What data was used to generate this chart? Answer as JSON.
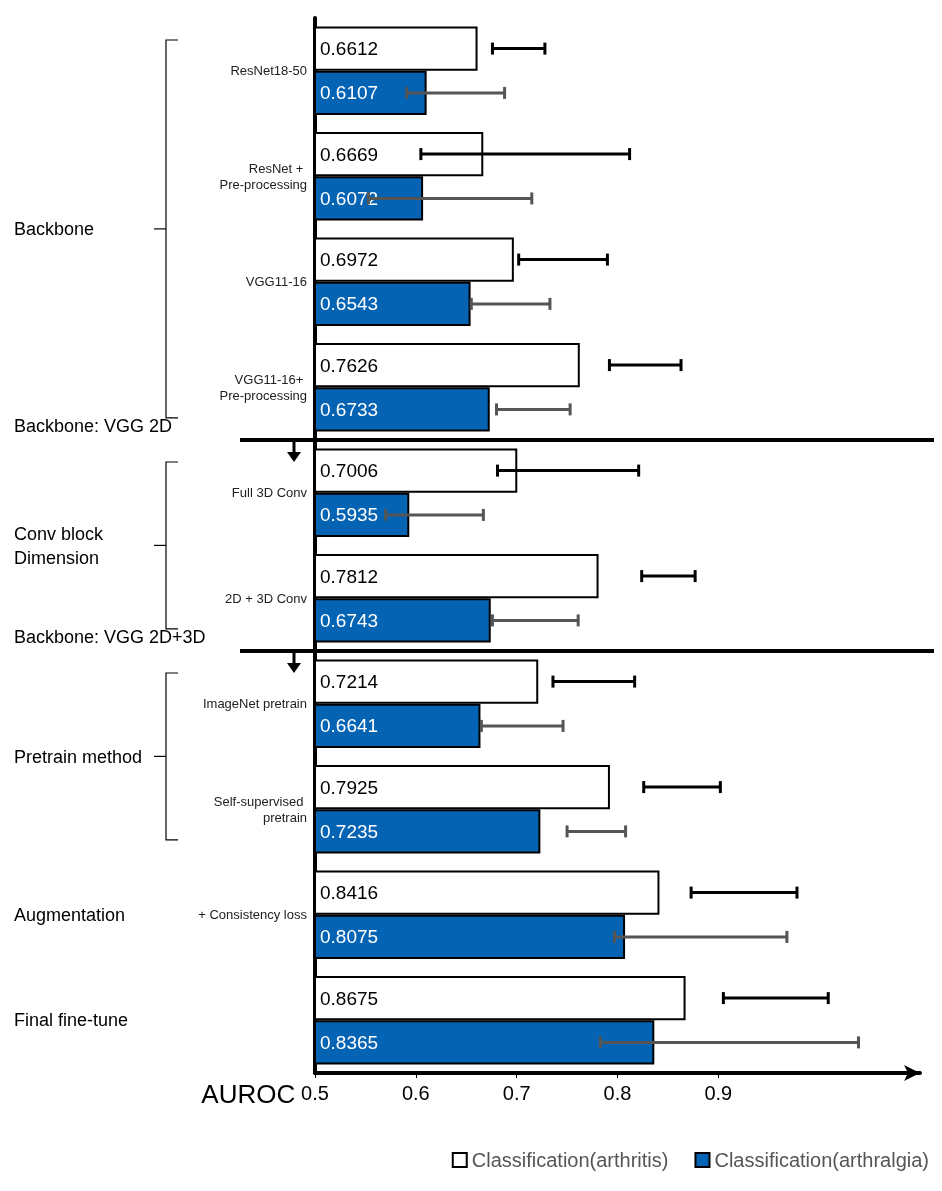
{
  "chart_data": {
    "type": "bar",
    "orientation": "horizontal",
    "xlabel": "AUROC",
    "categories": [
      "ResNet18-50",
      "ResNet + Pre-processing",
      "VGG11-16",
      "VGG11-16+ Pre-processing",
      "Full 3D Conv",
      "2D + 3D Conv",
      "ImageNet pretrain",
      "Self-supervised pretrain",
      "+ Consistency loss",
      null
    ],
    "series": [
      {
        "name": "Classification(arthritis)",
        "color": "#ffffff",
        "values": [
          0.6612,
          0.6669,
          0.6972,
          0.7626,
          0.7006,
          0.7812,
          0.7214,
          0.7925,
          0.8416,
          0.8675
        ],
        "errors": [
          [
            0.676,
            0.728
          ],
          [
            0.605,
            0.812
          ],
          [
            0.702,
            0.79
          ],
          [
            0.792,
            0.863
          ],
          [
            0.681,
            0.821
          ],
          [
            0.824,
            0.877
          ],
          [
            0.736,
            0.817
          ],
          [
            0.826,
            0.902
          ],
          [
            0.873,
            0.978
          ],
          [
            0.905,
            1.009
          ]
        ]
      },
      {
        "name": "Classification(arthralgia)",
        "color": "#0563b4",
        "values": [
          0.6107,
          0.6072,
          0.6543,
          0.6733,
          0.5935,
          0.6743,
          0.6641,
          0.7235,
          0.8075,
          0.8365
        ],
        "errors": [
          [
            0.591,
            0.688
          ],
          [
            0.553,
            0.715
          ],
          [
            0.655,
            0.733
          ],
          [
            0.68,
            0.753
          ],
          [
            0.57,
            0.667
          ],
          [
            0.676,
            0.761
          ],
          [
            0.665,
            0.746
          ],
          [
            0.75,
            0.808
          ],
          [
            0.797,
            0.968
          ],
          [
            0.783,
            1.039
          ]
        ]
      }
    ],
    "xlim": [
      0.5,
      1.1
    ],
    "xticks": [
      0.5,
      0.6,
      0.7,
      0.8,
      0.9
    ],
    "grid": false,
    "legend": "bottom",
    "data_labels": true,
    "annotations": [
      "Backbone",
      "Backbone: VGG 2D",
      "Conv block Dimension",
      "Backbone: VGG 2D+3D",
      "Pretrain method",
      "Augmentation",
      "Final fine-tune"
    ]
  }
}
